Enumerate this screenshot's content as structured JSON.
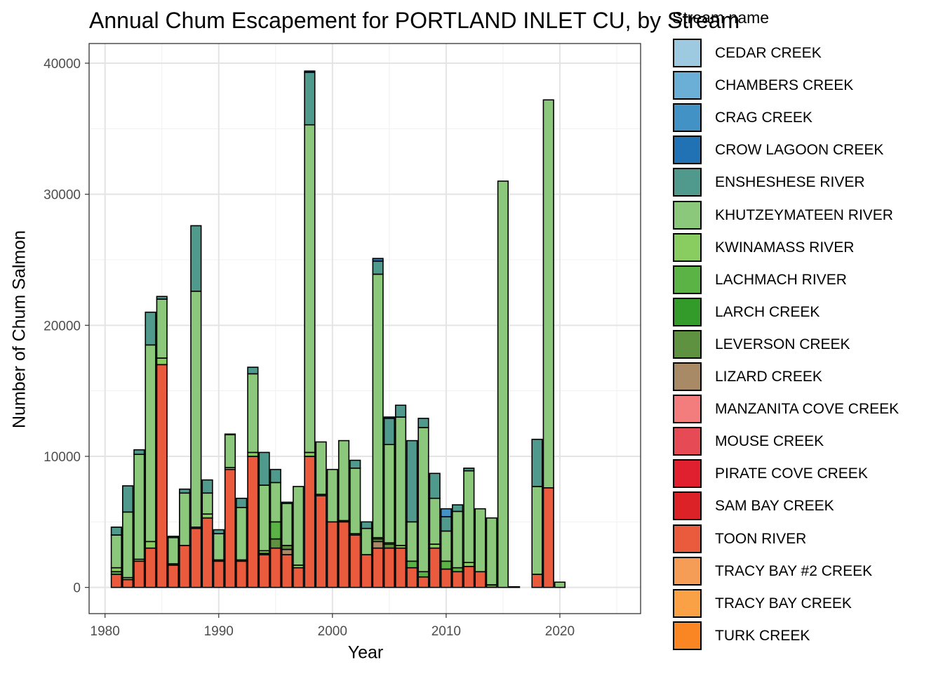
{
  "chart_data": {
    "type": "bar",
    "stacked": true,
    "title": "Annual Chum Escapement for PORTLAND INLET CU, by Stream",
    "xlabel": "Year",
    "ylabel": "Number of Chum Salmon",
    "legend_title": "Stream name",
    "legend_position": "right",
    "grid": true,
    "xlim": [
      1978.6,
      2027.1
    ],
    "ylim": [
      -2000,
      41500
    ],
    "x_ticks": [
      1980,
      1990,
      2000,
      2010,
      2020
    ],
    "y_ticks": [
      0,
      10000,
      20000,
      30000,
      40000
    ],
    "streams": [
      {
        "name": "CEDAR CREEK",
        "color": "#9ecae1"
      },
      {
        "name": "CHAMBERS CREEK",
        "color": "#6baed6"
      },
      {
        "name": "CRAG CREEK",
        "color": "#4292c6"
      },
      {
        "name": "CROW LAGOON CREEK",
        "color": "#2171b5"
      },
      {
        "name": "ENSHESHESE RIVER",
        "color": "#4f9a8c"
      },
      {
        "name": "KHUTZEYMATEEN RIVER",
        "color": "#8cc87c"
      },
      {
        "name": "KWINAMASS RIVER",
        "color": "#89cc5f"
      },
      {
        "name": "LACHMACH RIVER",
        "color": "#5bb345"
      },
      {
        "name": "LARCH CREEK",
        "color": "#329b2a"
      },
      {
        "name": "LEVERSON CREEK",
        "color": "#5e9140"
      },
      {
        "name": "LIZARD CREEK",
        "color": "#a98a67"
      },
      {
        "name": "MANZANITA COVE CREEK",
        "color": "#f37d7d"
      },
      {
        "name": "MOUSE CREEK",
        "color": "#e64b55"
      },
      {
        "name": "PIRATE COVE CREEK",
        "color": "#e0202f"
      },
      {
        "name": "SAM BAY CREEK",
        "color": "#dc2226"
      },
      {
        "name": "TOON RIVER",
        "color": "#ea5a3c"
      },
      {
        "name": "TRACY BAY #2 CREEK",
        "color": "#f59c57"
      },
      {
        "name": "TRACY BAY CREEK",
        "color": "#faa045"
      },
      {
        "name": "TURK CREEK",
        "color": "#fa8623"
      }
    ],
    "years": [
      {
        "x": 1981,
        "segments": [
          [
            "TOON RIVER",
            1000
          ],
          [
            "LACHMACH RIVER",
            200
          ],
          [
            "KWINAMASS RIVER",
            300
          ],
          [
            "KHUTZEYMATEEN RIVER",
            2500
          ],
          [
            "ENSHESHESE RIVER",
            600
          ]
        ]
      },
      {
        "x": 1982,
        "segments": [
          [
            "TOON RIVER",
            600
          ],
          [
            "KWINAMASS RIVER",
            150
          ],
          [
            "KHUTZEYMATEEN RIVER",
            5000
          ],
          [
            "ENSHESHESE RIVER",
            2000
          ]
        ]
      },
      {
        "x": 1983,
        "segments": [
          [
            "TOON RIVER",
            2000
          ],
          [
            "KWINAMASS RIVER",
            150
          ],
          [
            "KHUTZEYMATEEN RIVER",
            8000
          ],
          [
            "ENSHESHESE RIVER",
            350
          ]
        ]
      },
      {
        "x": 1984,
        "segments": [
          [
            "TOON RIVER",
            3000
          ],
          [
            "KWINAMASS RIVER",
            500
          ],
          [
            "KHUTZEYMATEEN RIVER",
            15000
          ],
          [
            "ENSHESHESE RIVER",
            2500
          ]
        ]
      },
      {
        "x": 1985,
        "segments": [
          [
            "TOON RIVER",
            17000
          ],
          [
            "KWINAMASS RIVER",
            500
          ],
          [
            "KHUTZEYMATEEN RIVER",
            4500
          ],
          [
            "ENSHESHESE RIVER",
            200
          ]
        ]
      },
      {
        "x": 1986,
        "segments": [
          [
            "TOON RIVER",
            1700
          ],
          [
            "KWINAMASS RIVER",
            100
          ],
          [
            "KHUTZEYMATEEN RIVER",
            2000
          ],
          [
            "ENSHESHESE RIVER",
            100
          ]
        ]
      },
      {
        "x": 1987,
        "segments": [
          [
            "TOON RIVER",
            3200
          ],
          [
            "KHUTZEYMATEEN RIVER",
            4000
          ],
          [
            "ENSHESHESE RIVER",
            300
          ]
        ]
      },
      {
        "x": 1988,
        "segments": [
          [
            "TOON RIVER",
            4500
          ],
          [
            "KWINAMASS RIVER",
            100
          ],
          [
            "KHUTZEYMATEEN RIVER",
            18000
          ],
          [
            "ENSHESHESE RIVER",
            5000
          ]
        ]
      },
      {
        "x": 1989,
        "segments": [
          [
            "TOON RIVER",
            5300
          ],
          [
            "KWINAMASS RIVER",
            300
          ],
          [
            "KHUTZEYMATEEN RIVER",
            1600
          ],
          [
            "ENSHESHESE RIVER",
            1000
          ]
        ]
      },
      {
        "x": 1990,
        "segments": [
          [
            "TOON RIVER",
            2000
          ],
          [
            "KWINAMASS RIVER",
            100
          ],
          [
            "KHUTZEYMATEEN RIVER",
            2000
          ],
          [
            "ENSHESHESE RIVER",
            300
          ]
        ]
      },
      {
        "x": 1991,
        "segments": [
          [
            "TOON RIVER",
            9000
          ],
          [
            "KWINAMASS RIVER",
            150
          ],
          [
            "KHUTZEYMATEEN RIVER",
            2500
          ],
          [
            "ENSHESHESE RIVER",
            50
          ]
        ]
      },
      {
        "x": 1992,
        "segments": [
          [
            "TOON RIVER",
            2000
          ],
          [
            "KWINAMASS RIVER",
            100
          ],
          [
            "KHUTZEYMATEEN RIVER",
            4000
          ],
          [
            "ENSHESHESE RIVER",
            700
          ]
        ]
      },
      {
        "x": 1993,
        "segments": [
          [
            "TOON RIVER",
            10000
          ],
          [
            "KWINAMASS RIVER",
            300
          ],
          [
            "KHUTZEYMATEEN RIVER",
            6000
          ],
          [
            "ENSHESHESE RIVER",
            500
          ]
        ]
      },
      {
        "x": 1994,
        "segments": [
          [
            "TOON RIVER",
            2500
          ],
          [
            "LEVERSON CREEK",
            100
          ],
          [
            "KWINAMASS RIVER",
            200
          ],
          [
            "KHUTZEYMATEEN RIVER",
            5000
          ],
          [
            "ENSHESHESE RIVER",
            2500
          ]
        ]
      },
      {
        "x": 1995,
        "segments": [
          [
            "TOON RIVER",
            3000
          ],
          [
            "LEVERSON CREEK",
            700
          ],
          [
            "LACHMACH RIVER",
            1300
          ],
          [
            "KHUTZEYMATEEN RIVER",
            3000
          ],
          [
            "ENSHESHESE RIVER",
            1000
          ]
        ]
      },
      {
        "x": 1996,
        "segments": [
          [
            "TOON RIVER",
            2500
          ],
          [
            "LIZARD CREEK",
            400
          ],
          [
            "LEVERSON CREEK",
            300
          ],
          [
            "KHUTZEYMATEEN RIVER",
            3200
          ],
          [
            "ENSHESHESE RIVER",
            100
          ]
        ]
      },
      {
        "x": 1997,
        "segments": [
          [
            "TOON RIVER",
            1500
          ],
          [
            "KWINAMASS RIVER",
            200
          ],
          [
            "KHUTZEYMATEEN RIVER",
            6000
          ]
        ]
      },
      {
        "x": 1998,
        "segments": [
          [
            "TOON RIVER",
            10000
          ],
          [
            "KWINAMASS RIVER",
            300
          ],
          [
            "KHUTZEYMATEEN RIVER",
            25000
          ],
          [
            "ENSHESHESE RIVER",
            4000
          ],
          [
            "CROW LAGOON CREEK",
            100
          ]
        ]
      },
      {
        "x": 1999,
        "segments": [
          [
            "TOON RIVER",
            7000
          ],
          [
            "KWINAMASS RIVER",
            100
          ],
          [
            "KHUTZEYMATEEN RIVER",
            4000
          ]
        ]
      },
      {
        "x": 2000,
        "segments": [
          [
            "TOON RIVER",
            5000
          ],
          [
            "KHUTZEYMATEEN RIVER",
            4000
          ]
        ]
      },
      {
        "x": 2001,
        "segments": [
          [
            "TOON RIVER",
            5000
          ],
          [
            "KWINAMASS RIVER",
            100
          ],
          [
            "KHUTZEYMATEEN RIVER",
            6100
          ]
        ]
      },
      {
        "x": 2002,
        "segments": [
          [
            "TOON RIVER",
            4000
          ],
          [
            "KWINAMASS RIVER",
            100
          ],
          [
            "KHUTZEYMATEEN RIVER",
            5000
          ],
          [
            "ENSHESHESE RIVER",
            600
          ]
        ]
      },
      {
        "x": 2003,
        "segments": [
          [
            "TOON RIVER",
            2500
          ],
          [
            "KHUTZEYMATEEN RIVER",
            2000
          ],
          [
            "ENSHESHESE RIVER",
            500
          ]
        ]
      },
      {
        "x": 2004,
        "segments": [
          [
            "TOON RIVER",
            3000
          ],
          [
            "LIZARD CREEK",
            500
          ],
          [
            "LEVERSON CREEK",
            200
          ],
          [
            "KWINAMASS RIVER",
            100
          ],
          [
            "KHUTZEYMATEEN RIVER",
            20100
          ],
          [
            "ENSHESHESE RIVER",
            1000
          ],
          [
            "CROW LAGOON CREEK",
            200
          ]
        ]
      },
      {
        "x": 2005,
        "segments": [
          [
            "TOON RIVER",
            3000
          ],
          [
            "LEVERSON CREEK",
            300
          ],
          [
            "KWINAMASS RIVER",
            100
          ],
          [
            "KHUTZEYMATEEN RIVER",
            7500
          ],
          [
            "ENSHESHESE RIVER",
            2000
          ],
          [
            "CROW LAGOON CREEK",
            100
          ]
        ]
      },
      {
        "x": 2006,
        "segments": [
          [
            "TOON RIVER",
            3000
          ],
          [
            "KWINAMASS RIVER",
            200
          ],
          [
            "KHUTZEYMATEEN RIVER",
            9800
          ],
          [
            "ENSHESHESE RIVER",
            900
          ]
        ]
      },
      {
        "x": 2007,
        "segments": [
          [
            "TOON RIVER",
            1500
          ],
          [
            "LACHMACH RIVER",
            500
          ],
          [
            "KHUTZEYMATEEN RIVER",
            3000
          ],
          [
            "ENSHESHESE RIVER",
            6200
          ]
        ]
      },
      {
        "x": 2008,
        "segments": [
          [
            "TOON RIVER",
            800
          ],
          [
            "LACHMACH RIVER",
            400
          ],
          [
            "KHUTZEYMATEEN RIVER",
            11000
          ],
          [
            "ENSHESHESE RIVER",
            700
          ]
        ]
      },
      {
        "x": 2009,
        "segments": [
          [
            "TOON RIVER",
            3000
          ],
          [
            "KWINAMASS RIVER",
            300
          ],
          [
            "KHUTZEYMATEEN RIVER",
            3500
          ],
          [
            "ENSHESHESE RIVER",
            1900
          ]
        ]
      },
      {
        "x": 2010,
        "segments": [
          [
            "TOON RIVER",
            1400
          ],
          [
            "LACHMACH RIVER",
            600
          ],
          [
            "KHUTZEYMATEEN RIVER",
            2300
          ],
          [
            "ENSHESHESE RIVER",
            1100
          ],
          [
            "CRAG CREEK",
            600
          ]
        ]
      },
      {
        "x": 2011,
        "segments": [
          [
            "TOON RIVER",
            1200
          ],
          [
            "LACHMACH RIVER",
            300
          ],
          [
            "KHUTZEYMATEEN RIVER",
            4300
          ],
          [
            "ENSHESHESE RIVER",
            500
          ]
        ]
      },
      {
        "x": 2012,
        "segments": [
          [
            "TOON RIVER",
            1600
          ],
          [
            "KWINAMASS RIVER",
            300
          ],
          [
            "KHUTZEYMATEEN RIVER",
            7000
          ],
          [
            "ENSHESHESE RIVER",
            200
          ]
        ]
      },
      {
        "x": 2013,
        "segments": [
          [
            "TOON RIVER",
            1200
          ],
          [
            "KHUTZEYMATEEN RIVER",
            4800
          ]
        ]
      },
      {
        "x": 2014,
        "segments": [
          [
            "LEVERSON CREEK",
            200
          ],
          [
            "KHUTZEYMATEEN RIVER",
            5100
          ]
        ]
      },
      {
        "x": 2015,
        "segments": [
          [
            "KHUTZEYMATEEN RIVER",
            31000
          ]
        ]
      },
      {
        "x": 2016,
        "segments": [
          [
            "KHUTZEYMATEEN RIVER",
            50
          ]
        ]
      },
      {
        "x": 2018,
        "segments": [
          [
            "TOON RIVER",
            1000
          ],
          [
            "KHUTZEYMATEEN RIVER",
            6700
          ],
          [
            "ENSHESHESE RIVER",
            3600
          ]
        ]
      },
      {
        "x": 2019,
        "segments": [
          [
            "TOON RIVER",
            7600
          ],
          [
            "KHUTZEYMATEEN RIVER",
            29600
          ]
        ]
      },
      {
        "x": 2020,
        "segments": [
          [
            "KHUTZEYMATEEN RIVER",
            400
          ]
        ]
      }
    ]
  }
}
